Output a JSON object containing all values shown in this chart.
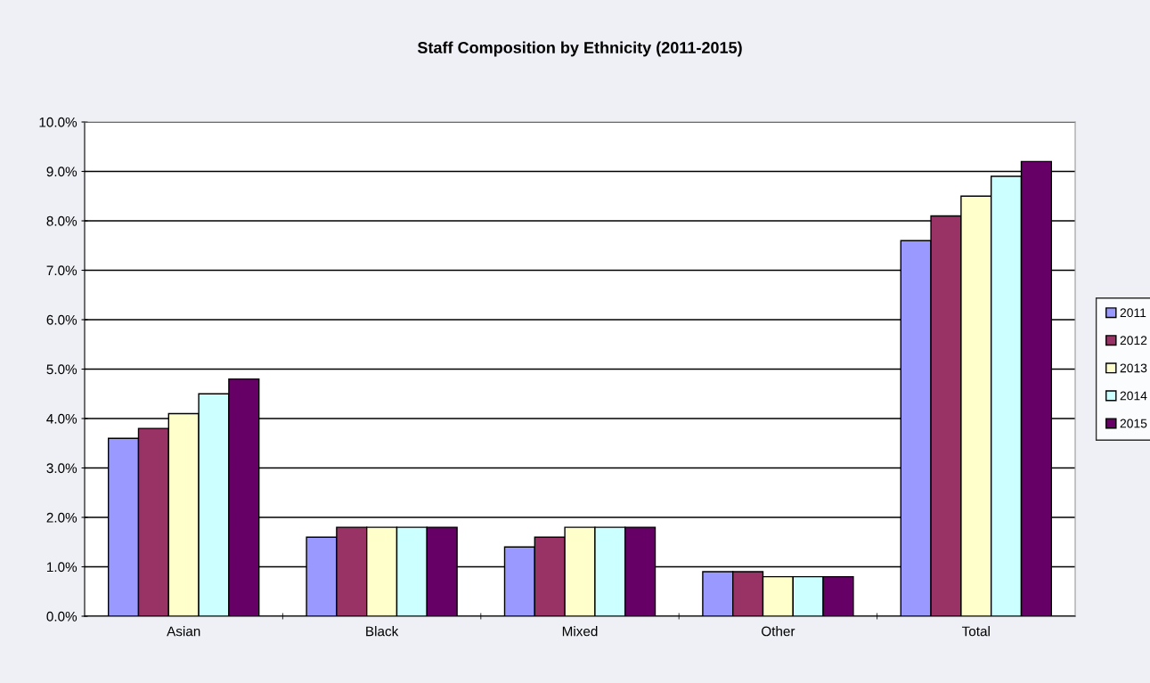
{
  "chart_data": {
    "type": "bar",
    "title": "Staff Composition by Ethnicity (2011-2015)",
    "categories": [
      "Asian",
      "Black",
      "Mixed",
      "Other",
      "Total"
    ],
    "series": [
      {
        "name": "2011",
        "color": "#9999ff",
        "values": [
          3.6,
          1.6,
          1.4,
          0.9,
          7.6
        ]
      },
      {
        "name": "2012",
        "color": "#993366",
        "values": [
          3.8,
          1.8,
          1.6,
          0.9,
          8.1
        ]
      },
      {
        "name": "2013",
        "color": "#ffffcc",
        "values": [
          4.1,
          1.8,
          1.8,
          0.8,
          8.5
        ]
      },
      {
        "name": "2014",
        "color": "#ccffff",
        "values": [
          4.5,
          1.8,
          1.8,
          0.8,
          8.9
        ]
      },
      {
        "name": "2015",
        "color": "#660066",
        "values": [
          4.8,
          1.8,
          1.8,
          0.8,
          9.2
        ]
      }
    ],
    "ylim": [
      0,
      10
    ],
    "yticks": [
      {
        "value": 0,
        "label": "0.0%"
      },
      {
        "value": 1,
        "label": "1.0%"
      },
      {
        "value": 2,
        "label": "2.0%"
      },
      {
        "value": 3,
        "label": "3.0%"
      },
      {
        "value": 4,
        "label": "4.0%"
      },
      {
        "value": 5,
        "label": "5.0%"
      },
      {
        "value": 6,
        "label": "6.0%"
      },
      {
        "value": 7,
        "label": "7.0%"
      },
      {
        "value": 8,
        "label": "8.0%"
      },
      {
        "value": 9,
        "label": "9.0%"
      },
      {
        "value": 10,
        "label": "10.0%"
      }
    ],
    "grid": "y",
    "legend": "right"
  }
}
